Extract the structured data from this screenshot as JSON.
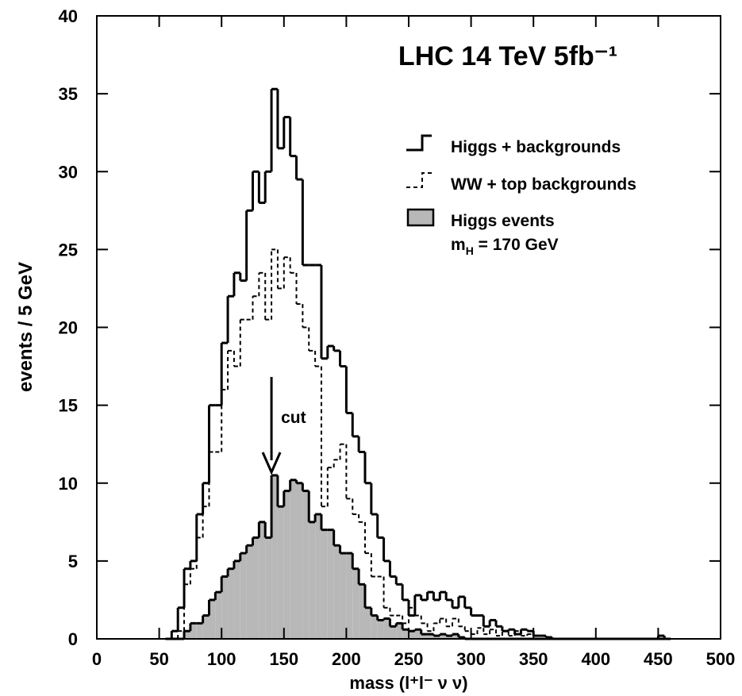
{
  "chart_data": {
    "type": "histogram",
    "title": "LHC 14 TeV 5fb⁻¹",
    "x_label": "mass (l⁺l⁻ ν ν)",
    "y_label": "events / 5 GeV",
    "xlim": [
      0,
      500
    ],
    "ylim": [
      0,
      40
    ],
    "xticks": [
      0,
      50,
      100,
      150,
      200,
      250,
      300,
      350,
      400,
      450,
      500
    ],
    "yticks": [
      0,
      5,
      10,
      15,
      20,
      25,
      30,
      35,
      40
    ],
    "bins": [
      55,
      60,
      65,
      70,
      75,
      80,
      85,
      90,
      95,
      100,
      105,
      110,
      115,
      120,
      125,
      130,
      135,
      140,
      145,
      150,
      155,
      160,
      165,
      170,
      175,
      180,
      185,
      190,
      195,
      200,
      205,
      210,
      215,
      220,
      225,
      230,
      235,
      240,
      245,
      250,
      255,
      260,
      265,
      270,
      275,
      280,
      285,
      290,
      295,
      300,
      305,
      310,
      315,
      320,
      325,
      330,
      335,
      340,
      345,
      350,
      355,
      360,
      365,
      370,
      375,
      380,
      385,
      390,
      395,
      400,
      405,
      410,
      415,
      420,
      425,
      430,
      435,
      440,
      445,
      450,
      455,
      460
    ],
    "series": [
      {
        "name": "Higgs + backgrounds",
        "color": "#000000",
        "style": "solid",
        "values": [
          0,
          0.5,
          2,
          4.5,
          5,
          8,
          10,
          15,
          15,
          19,
          22,
          23.5,
          23,
          27.5,
          30,
          28,
          30,
          35.3,
          31.5,
          33.5,
          31,
          29.5,
          24,
          24,
          24,
          18,
          18.8,
          18.5,
          17.5,
          14.5,
          13,
          12,
          10,
          8,
          6.5,
          5,
          4,
          3.5,
          2.5,
          1.5,
          2.8,
          2.5,
          3,
          2.5,
          3,
          2.5,
          2,
          2.7,
          2,
          1.5,
          1.5,
          0.8,
          1.2,
          0.8,
          0.5,
          0.6,
          0.3,
          0.6,
          0.5,
          0.2,
          0.2,
          0.1,
          0,
          0,
          0,
          0,
          0,
          0,
          0,
          0,
          0,
          0,
          0,
          0,
          0,
          0,
          0,
          0,
          0,
          0.2,
          0
        ]
      },
      {
        "name": "WW + top backgrounds",
        "color": "#000000",
        "style": "dashed",
        "values": [
          0,
          0,
          0.5,
          3.5,
          4.5,
          6.5,
          8.5,
          12,
          12,
          16,
          18.5,
          17.5,
          20.5,
          20.5,
          22,
          23.5,
          20.5,
          25,
          22.5,
          24.5,
          23.5,
          21.5,
          20,
          18.5,
          17.5,
          8.5,
          11,
          11.5,
          12.5,
          9,
          8,
          7.5,
          5.5,
          4,
          4,
          2,
          1.5,
          1.5,
          1,
          2,
          1.5,
          1,
          0.5,
          1,
          1.3,
          0.8,
          1.3,
          0.8,
          0.5,
          0.3,
          0.7,
          0.3,
          0.6,
          0.2,
          0.5,
          0.2,
          0.5,
          0.2,
          0.3,
          0.2,
          0.2,
          0.1,
          0,
          0,
          0,
          0,
          0,
          0,
          0,
          0,
          0,
          0,
          0,
          0,
          0,
          0,
          0,
          0,
          0,
          0.2,
          0
        ]
      },
      {
        "name": "Higgs events",
        "color": "#b8b8b8",
        "style": "filled",
        "values": [
          0,
          0,
          0,
          0.5,
          1,
          1,
          1.5,
          2.5,
          3,
          4,
          4.5,
          5,
          5.5,
          6,
          6.5,
          7.5,
          6.5,
          10.5,
          8.5,
          9.5,
          10.2,
          10,
          9.5,
          7.5,
          8,
          7,
          7,
          6,
          5.5,
          5.5,
          4.5,
          3.5,
          2,
          1.5,
          1.2,
          1.3,
          0.8,
          1,
          0.6,
          0.5,
          0.6,
          0.3,
          0.3,
          0.2,
          0.3,
          0.2,
          0.3,
          0.1,
          0,
          0,
          0,
          0,
          0,
          0,
          0,
          0,
          0,
          0,
          0,
          0,
          0,
          0,
          0,
          0,
          0,
          0,
          0,
          0,
          0,
          0,
          0,
          0,
          0,
          0,
          0,
          0,
          0,
          0,
          0,
          0,
          0
        ]
      }
    ],
    "legend_note": [
      "m",
      "H",
      " = 170 GeV"
    ],
    "cut_arrow": {
      "x": 140,
      "label": "cut"
    },
    "legend_position": "upper right"
  }
}
